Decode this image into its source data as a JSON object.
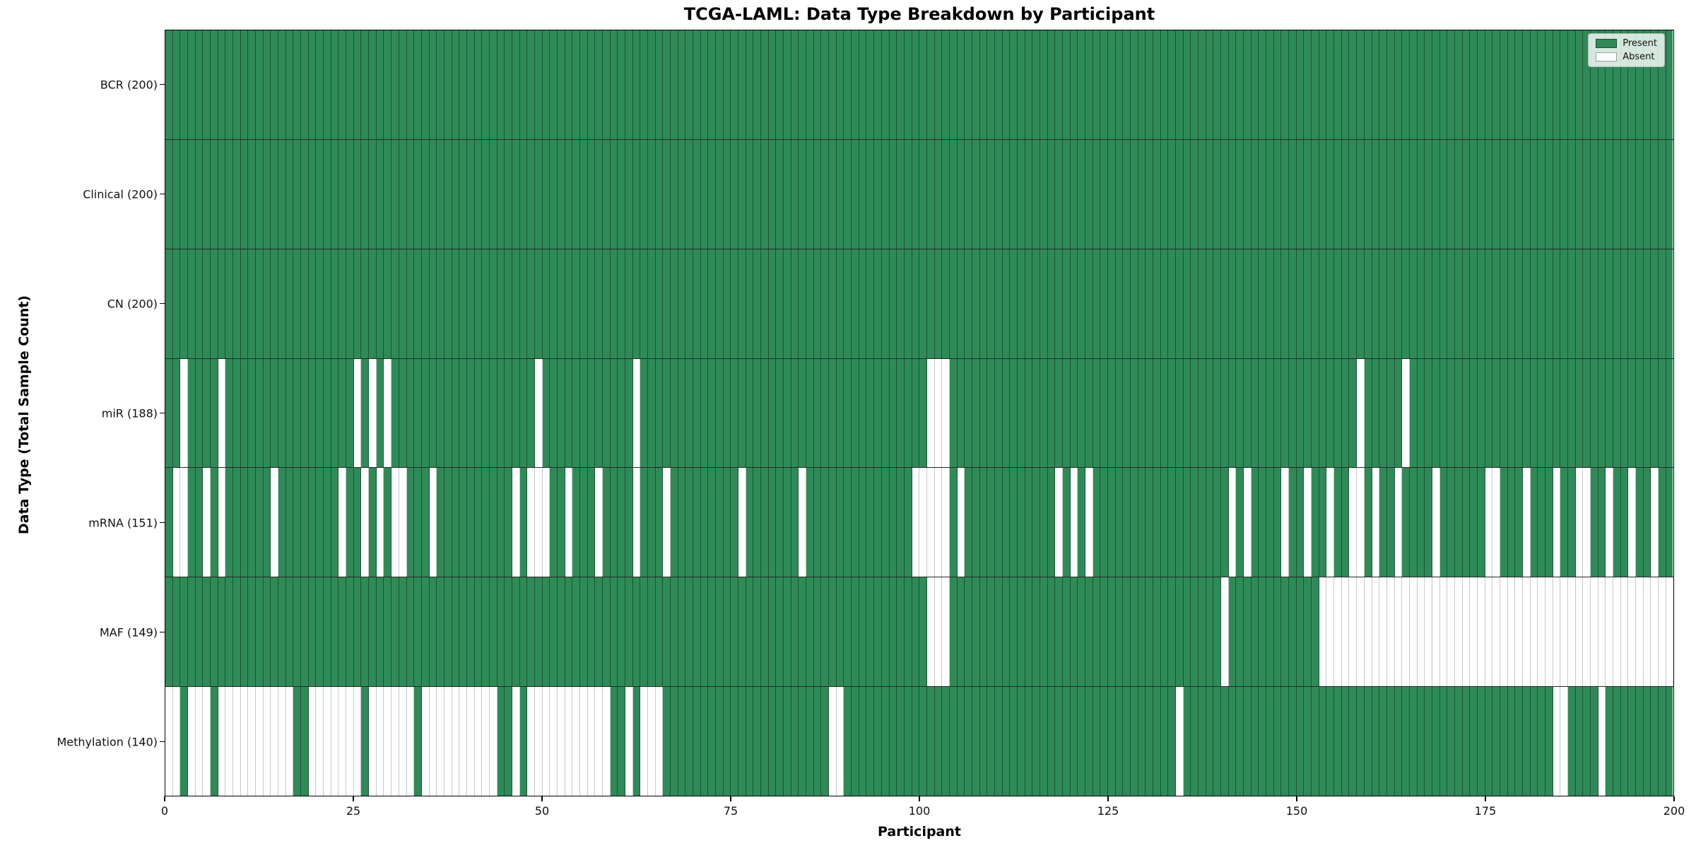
{
  "title": "TCGA-LAML: Data Type Breakdown by Participant",
  "xlabel": "Participant",
  "ylabel": "Data Type (Total Sample Count)",
  "legend": {
    "present_label": "Present",
    "absent_label": "Absent"
  },
  "colors": {
    "present": "#2E8B57",
    "absent": "#FFFFFF",
    "present_edge": "#153a26",
    "absent_edge": "#C8C8C8",
    "row_separator": "#262626"
  },
  "n_participants": 200,
  "x_ticks": [
    0,
    25,
    50,
    75,
    100,
    125,
    150,
    175,
    200
  ],
  "chart_data": {
    "type": "heatmap",
    "title": "TCGA-LAML: Data Type Breakdown by Participant",
    "xlabel": "Participant",
    "ylabel": "Data Type (Total Sample Count)",
    "x_range": [
      0,
      200
    ],
    "legend_position": "upper right",
    "legend_entries": [
      "Present",
      "Absent"
    ],
    "value_encoding": {
      "present": 1,
      "absent": 0
    },
    "rows": [
      {
        "name": "BCR",
        "label": "BCR (200)",
        "present_count": 200,
        "absent_participants": []
      },
      {
        "name": "Clinical",
        "label": "Clinical (200)",
        "present_count": 200,
        "absent_participants": []
      },
      {
        "name": "CN",
        "label": "CN (200)",
        "present_count": 200,
        "absent_participants": []
      },
      {
        "name": "miR",
        "label": "miR (188)",
        "present_count": 188,
        "absent_participants": [
          2,
          7,
          25,
          27,
          29,
          49,
          62,
          101,
          102,
          103,
          158,
          164
        ]
      },
      {
        "name": "mRNA",
        "label": "mRNA (151)",
        "present_count": 151,
        "absent_participants": [
          1,
          2,
          5,
          7,
          14,
          23,
          26,
          28,
          30,
          31,
          35,
          46,
          48,
          49,
          50,
          53,
          57,
          62,
          66,
          76,
          84,
          99,
          100,
          101,
          102,
          103,
          105,
          118,
          120,
          122,
          141,
          143,
          148,
          151,
          154,
          157,
          158,
          160,
          163,
          168,
          175,
          176,
          180,
          184,
          187,
          188,
          191,
          194,
          197
        ]
      },
      {
        "name": "MAF",
        "label": "MAF (149)",
        "present_count": 149,
        "absent_participants": [
          101,
          102,
          103,
          140,
          153,
          154,
          155,
          156,
          157,
          158,
          159,
          160,
          161,
          162,
          163,
          164,
          165,
          166,
          167,
          168,
          169,
          170,
          171,
          172,
          173,
          174,
          175,
          176,
          177,
          178,
          179,
          180,
          181,
          182,
          183,
          184,
          185,
          186,
          187,
          188,
          189,
          190,
          191,
          192,
          193,
          194,
          195,
          196,
          197,
          198,
          199
        ]
      },
      {
        "name": "Methylation",
        "label": "Methylation (140)",
        "present_count": 140,
        "absent_participants": [
          0,
          1,
          3,
          4,
          5,
          7,
          8,
          9,
          10,
          11,
          12,
          13,
          14,
          15,
          16,
          19,
          20,
          21,
          22,
          23,
          24,
          25,
          27,
          28,
          29,
          30,
          31,
          32,
          34,
          35,
          36,
          37,
          38,
          39,
          40,
          41,
          42,
          43,
          46,
          48,
          49,
          50,
          51,
          52,
          53,
          54,
          55,
          56,
          57,
          58,
          61,
          63,
          64,
          65,
          88,
          89,
          134,
          184,
          185,
          190
        ]
      }
    ]
  }
}
